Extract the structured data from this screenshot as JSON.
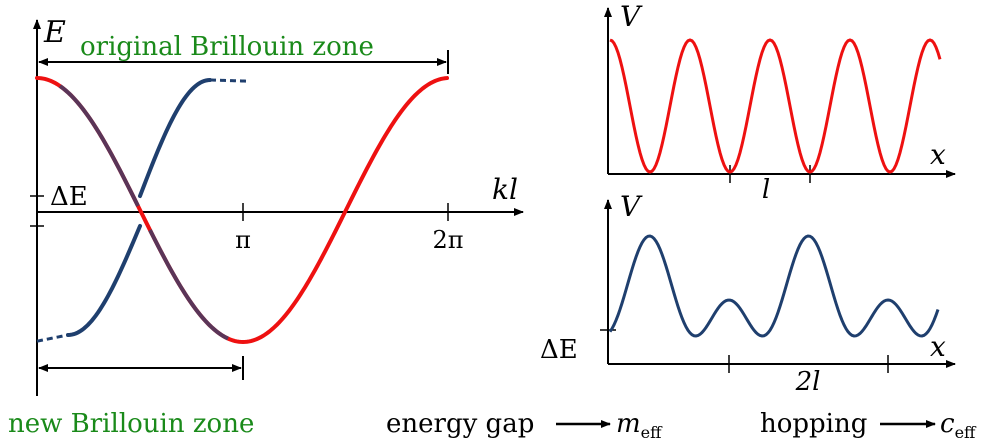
{
  "left_panel": {
    "axis_y_label": "E",
    "axis_x_label": "kl",
    "delta_e_label": "ΔE",
    "tick_pi": "π",
    "tick_2pi": "2π",
    "original_zone_label": "original Brillouin zone",
    "new_zone_label": "new Brillouin zone"
  },
  "top_right": {
    "axis_y_label": "V",
    "axis_x_label": "x",
    "period_label": "l"
  },
  "bottom_right": {
    "axis_y_label": "V",
    "axis_x_label": "x",
    "delta_e_label": "ΔE",
    "period_label": "2l"
  },
  "captions": {
    "energy_gap": "energy gap",
    "m_eff_base": "m",
    "m_eff_sub": "eff",
    "hopping": "hopping",
    "c_eff_base": "c",
    "c_eff_sub": "eff"
  },
  "colors": {
    "original_band": "#ee1111",
    "folded_band": "#1f3f6e",
    "overlap": "#5a3558",
    "zone_label": "#1a8a1a"
  }
}
